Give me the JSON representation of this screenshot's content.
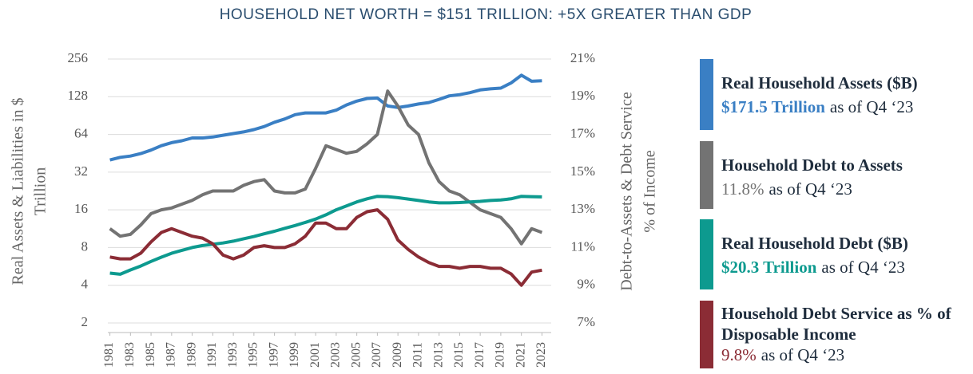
{
  "chart_data": {
    "type": "line",
    "title": "HOUSEHOLD NET WORTH = $151 TRILLION: +5X GREATER THAN GDP",
    "ylabel": [
      "Real Assets & Liabilities in $",
      "Trillion"
    ],
    "y2label": [
      "Debt-to-Assets & Debt Service",
      "% of Income"
    ],
    "ylog": true,
    "x": [
      1981,
      1982,
      1983,
      1984,
      1985,
      1986,
      1987,
      1988,
      1989,
      1990,
      1991,
      1992,
      1993,
      1994,
      1995,
      1996,
      1997,
      1998,
      1999,
      2000,
      2001,
      2002,
      2003,
      2004,
      2005,
      2006,
      2007,
      2008,
      2009,
      2010,
      2011,
      2012,
      2013,
      2014,
      2015,
      2016,
      2017,
      2018,
      2019,
      2020,
      2021,
      2022,
      2023
    ],
    "xlim": [
      1980.8,
      2023.9
    ],
    "xticks": [
      1981,
      1983,
      1985,
      1987,
      1989,
      1991,
      1993,
      1995,
      1997,
      1999,
      2001,
      2003,
      2005,
      2007,
      2009,
      2011,
      2013,
      2015,
      2017,
      2019,
      2021,
      2023
    ],
    "ylim": [
      2,
      256
    ],
    "yticks": [
      2,
      4,
      8,
      16,
      32,
      64,
      128,
      256
    ],
    "y2lim": [
      7,
      21
    ],
    "y2ticks": [
      {
        "value": 7,
        "label": "7%"
      },
      {
        "value": 9,
        "label": "9%"
      },
      {
        "value": 11,
        "label": "11%"
      },
      {
        "value": 13,
        "label": "13%"
      },
      {
        "value": 15,
        "label": "15%"
      },
      {
        "value": 17,
        "label": "17%"
      },
      {
        "value": 19,
        "label": "19%"
      },
      {
        "value": 21,
        "label": "21%"
      }
    ],
    "grid": true,
    "series": [
      {
        "name": "Real Household Assets ($B)",
        "color": "#3a7fc4",
        "latest": "$171.5 Trillion",
        "as_of": "as of Q4 ‘23",
        "values": [
          40,
          42,
          43,
          45,
          48,
          52,
          55,
          57,
          60,
          60,
          61,
          63,
          65,
          67,
          70,
          74,
          80,
          85,
          92,
          95,
          95,
          95,
          100,
          110,
          118,
          124,
          125,
          108,
          105,
          108,
          112,
          115,
          122,
          130,
          133,
          138,
          145,
          148,
          150,
          165,
          190,
          170,
          171.5
        ]
      },
      {
        "name": "Household Debt to Assets",
        "color": "#737373",
        "latest": "11.8%",
        "as_of": "as of Q4 ‘23",
        "axis": "y2",
        "values": [
          12.0,
          11.6,
          11.7,
          12.2,
          12.8,
          13.0,
          13.1,
          13.3,
          13.5,
          13.8,
          14.0,
          14.0,
          14.0,
          14.3,
          14.5,
          14.6,
          14.0,
          13.9,
          13.9,
          14.1,
          15.2,
          16.4,
          16.2,
          16.0,
          16.1,
          16.5,
          17.0,
          19.3,
          18.5,
          17.5,
          17.0,
          15.5,
          14.5,
          14.0,
          13.8,
          13.4,
          13.0,
          12.8,
          12.6,
          12.0,
          11.2,
          12.0,
          11.8
        ]
      },
      {
        "name": "Real Household Debt ($B)",
        "color": "#0d9a8f",
        "latest": "$20.3 Trillion",
        "as_of": "as of Q4 ‘23",
        "values": [
          5.0,
          4.9,
          5.3,
          5.7,
          6.2,
          6.7,
          7.2,
          7.6,
          8.0,
          8.3,
          8.5,
          8.7,
          9.0,
          9.4,
          9.8,
          10.3,
          10.8,
          11.4,
          12.0,
          12.7,
          13.5,
          14.6,
          16.0,
          17.2,
          18.5,
          19.6,
          20.5,
          20.4,
          20.0,
          19.5,
          19.0,
          18.5,
          18.2,
          18.2,
          18.3,
          18.5,
          18.7,
          19.0,
          19.2,
          19.6,
          20.5,
          20.4,
          20.3
        ]
      },
      {
        "name": "Household Debt Service as % of Disposable Income",
        "color": "#8b2c35",
        "latest": "9.8%",
        "as_of": "as of Q4 ‘23",
        "axis": "y2",
        "values": [
          10.5,
          10.4,
          10.4,
          10.7,
          11.3,
          11.8,
          12.0,
          11.8,
          11.6,
          11.5,
          11.2,
          10.6,
          10.4,
          10.6,
          11.0,
          11.1,
          11.0,
          11.0,
          11.2,
          11.6,
          12.3,
          12.3,
          12.0,
          12.0,
          12.6,
          12.9,
          13.0,
          12.5,
          11.4,
          10.9,
          10.5,
          10.2,
          10.0,
          10.0,
          9.9,
          10.0,
          10.0,
          9.9,
          9.9,
          9.6,
          9.0,
          9.7,
          9.8
        ]
      }
    ]
  }
}
